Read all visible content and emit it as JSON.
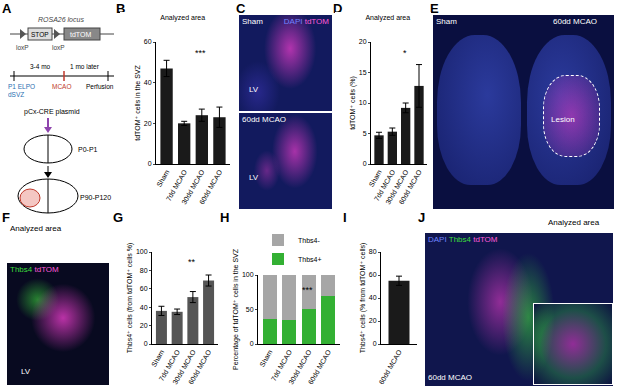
{
  "figure": {
    "panel_letters": [
      "A",
      "B",
      "C",
      "D",
      "E",
      "F",
      "G",
      "H",
      "I",
      "J"
    ],
    "diagram_A": {
      "locus": "ROSA26 locus",
      "reporter": "tdTOM",
      "stop": "STOP",
      "lox": "loxP",
      "electroporation": "P1 ELPO",
      "region": "dSVZ",
      "interval": "3-4 mo",
      "injury": "MCAO",
      "delay": "1 mo later",
      "endpoint": "Perfusion",
      "plasmid": "pCx-CRE plasmid",
      "age_early": "P0-P1",
      "age_late": "P90-P120"
    },
    "image_C": {
      "stain_dapi": "DAPI",
      "stain_red": "tdTOM",
      "top": "Sham",
      "bottom": "60dd MCAO",
      "ventricle": "LV"
    },
    "image_E": {
      "left": "Sham",
      "right": "60dd MCAO",
      "lesion": "Lesion"
    },
    "image_F": {
      "stain_green": "Thbs4",
      "stain_red": "tdTOM",
      "ventricle": "LV",
      "inset": "Analyzed area"
    },
    "image_J": {
      "stain_dapi": "DAPI",
      "stain_green": "Thbs4",
      "stain_red": "tdTOM",
      "condition": "60dd MCAO",
      "inset": "Analyzed area"
    }
  },
  "chart_data": [
    {
      "type": "bar",
      "subtitle": "Analyzed area",
      "ylabel": "tdTOM⁺ cells in the SVZ",
      "categories": [
        "Sham",
        "7dd MCAO",
        "30dd MCAO",
        "60dd MCAO"
      ],
      "values": [
        47,
        20,
        24,
        23
      ],
      "errors": [
        4,
        1,
        3,
        5
      ],
      "color": "#1a1a1a",
      "ylim": [
        0,
        60
      ],
      "yticks": [
        0,
        20,
        40,
        60
      ],
      "annotations": [
        "***"
      ]
    },
    {
      "type": "bar",
      "subtitle": "Analyzed area",
      "ylabel": "tdTOM⁺ cells (%)",
      "categories": [
        "Sham",
        "7dd MCAO",
        "30dd MCAO",
        "60dd MCAO"
      ],
      "values": [
        4.7,
        5.3,
        9.2,
        12.8
      ],
      "errors": [
        0.5,
        0.6,
        0.8,
        3.5
      ],
      "color": "#1a1a1a",
      "ylim": [
        0,
        20
      ],
      "yticks": [
        0,
        5,
        10,
        15,
        20
      ],
      "annotations": [
        "*"
      ]
    },
    {
      "type": "bar",
      "ylabel": "Thbs4⁺ cells (from tdTOM⁺ cells %)",
      "categories": [
        "Sham",
        "7dd MCAO",
        "30dd MCAO",
        "60dd MCAO"
      ],
      "values": [
        36,
        35,
        51,
        69
      ],
      "errors": [
        5,
        3,
        6,
        6
      ],
      "color": "#555555",
      "ylim": [
        0,
        100
      ],
      "yticks": [
        0,
        20,
        40,
        60,
        80,
        100
      ],
      "annotations": [
        "**"
      ]
    },
    {
      "type": "bar",
      "stacked": true,
      "legend": "top",
      "ylabel": "Percentage of tdTOM⁺ cells in the SVZ",
      "categories": [
        "Sham",
        "7dd MCAO",
        "30dd MCAO",
        "60dd MCAO"
      ],
      "series": [
        {
          "name": "Thbs4+",
          "color": "#33b033",
          "values": [
            36,
            35,
            51,
            69
          ]
        },
        {
          "name": "Thbs4-",
          "color": "#a6a6a6",
          "values": [
            64,
            65,
            49,
            31
          ]
        }
      ],
      "ylim": [
        0,
        100
      ],
      "yticks": [
        0,
        50,
        100
      ],
      "annotations": [
        "***"
      ]
    },
    {
      "type": "bar",
      "ylabel": "Thbs4⁺ cells (% from tdTOM⁺ cells)",
      "categories": [
        "60dd MCAO"
      ],
      "values": [
        55
      ],
      "errors": [
        4
      ],
      "color": "#1a1a1a",
      "ylim": [
        0,
        80
      ],
      "yticks": [
        0,
        20,
        40,
        60,
        80
      ]
    }
  ]
}
